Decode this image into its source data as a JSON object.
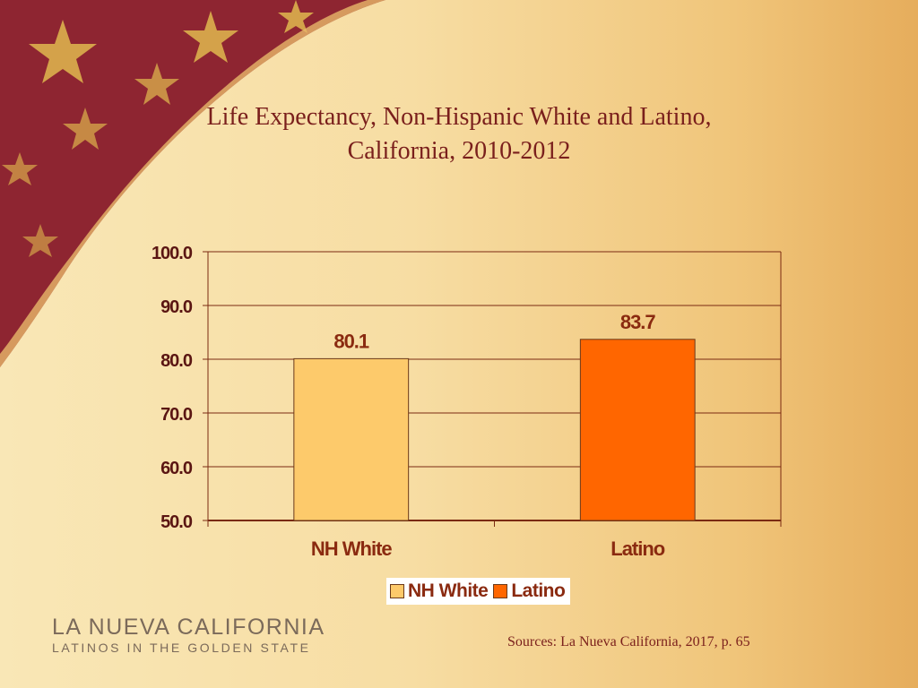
{
  "slide": {
    "title_line1": "Life Expectancy, Non-Hispanic White and Latino,",
    "title_line2": "California, 2010-2012",
    "source": "Sources: La Nueva California, 2017, p. 65",
    "logo_main": "LA NUEVA CALIFORNIA",
    "logo_sub": "LATINOS IN THE GOLDEN STATE",
    "colors": {
      "decor_red": "#8e2531",
      "star_gold": "#d4a24a",
      "title": "#7a1f1c",
      "gridline": "#7a2a12"
    }
  },
  "chart_data": {
    "type": "bar",
    "title": "Life Expectancy, Non-Hispanic White and Latino, California, 2010-2012",
    "categories": [
      "NH White",
      "Latino"
    ],
    "values": [
      80.1,
      83.7
    ],
    "value_labels": [
      "80.1",
      "83.7"
    ],
    "colors": [
      "#fdca6b",
      "#ff6600"
    ],
    "ylim": [
      50,
      100
    ],
    "yticks": [
      50,
      60,
      70,
      80,
      90,
      100
    ],
    "ytick_labels": [
      "50.0",
      "60.0",
      "70.0",
      "80.0",
      "90.0",
      "100.0"
    ],
    "grid": true,
    "legend": {
      "position": "bottom",
      "entries": [
        "NH White",
        "Latino"
      ]
    }
  }
}
